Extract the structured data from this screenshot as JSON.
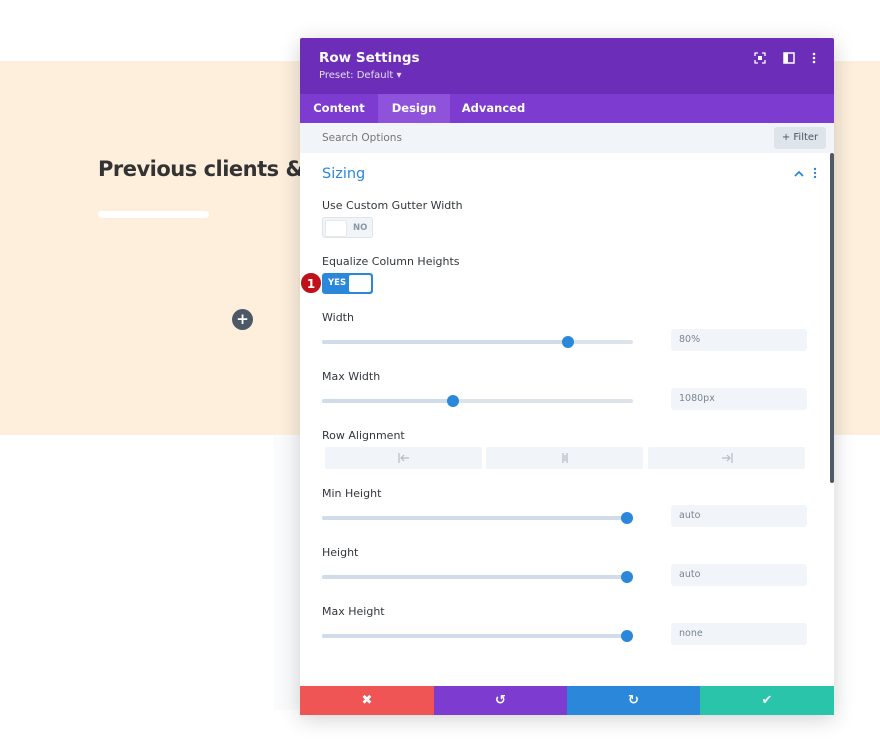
{
  "page": {
    "heading": "Previous clients & t",
    "add_icon": "plus-icon",
    "colors": {
      "band": "#fdefdc"
    }
  },
  "modal": {
    "title": "Row Settings",
    "preset": "Preset: Default ▾",
    "header_icons": [
      "focus-icon",
      "split-view-icon",
      "more-options-icon"
    ],
    "tabs": [
      {
        "label": "Content",
        "active": false
      },
      {
        "label": "Design",
        "active": true
      },
      {
        "label": "Advanced",
        "active": false
      }
    ],
    "search": {
      "placeholder": "Search Options",
      "filter_label": "+ Filter"
    },
    "section": {
      "title": "Sizing",
      "collapse_icon": "chevron-up-icon",
      "menu_icon": "more-vertical-icon"
    },
    "fields": {
      "gutter": {
        "label": "Use Custom Gutter Width",
        "state": "NO"
      },
      "equalize": {
        "label": "Equalize Column Heights",
        "state": "YES",
        "badge": "1"
      },
      "width": {
        "label": "Width",
        "value": "80%",
        "level": 0.79
      },
      "max_width": {
        "label": "Max Width",
        "value": "1080px",
        "level": 0.42
      },
      "row_alignment": {
        "label": "Row Alignment",
        "options": [
          "align-left-icon",
          "align-center-icon",
          "align-right-icon"
        ]
      },
      "min_height": {
        "label": "Min Height",
        "value": "auto",
        "level": 0.98
      },
      "height": {
        "label": "Height",
        "value": "auto",
        "level": 0.98
      },
      "max_height": {
        "label": "Max Height",
        "value": "none",
        "level": 0.98
      }
    },
    "footer": {
      "buttons": [
        {
          "name": "discard",
          "icon": "close-icon",
          "glyph": "✖",
          "color": "#ef5555"
        },
        {
          "name": "undo",
          "icon": "undo-icon",
          "glyph": "↺",
          "color": "#7e3bd0"
        },
        {
          "name": "redo",
          "icon": "redo-icon",
          "glyph": "↻",
          "color": "#2b87da"
        },
        {
          "name": "save",
          "icon": "check-icon",
          "glyph": "✔",
          "color": "#29c4a9"
        }
      ]
    },
    "colors": {
      "header": "#6c2eb9",
      "tabs": "#7d3bcf",
      "accent": "#2b87da"
    }
  }
}
